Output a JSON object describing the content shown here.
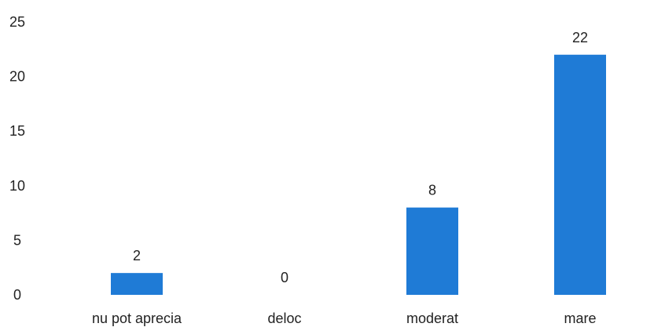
{
  "chart_data": {
    "type": "bar",
    "categories": [
      "nu pot aprecia",
      "deloc",
      "moderat",
      "mare"
    ],
    "values": [
      2,
      0,
      8,
      22
    ],
    "data_labels": [
      "2",
      "0",
      "8",
      "22"
    ],
    "y_ticks": [
      0,
      5,
      10,
      15,
      20,
      25
    ],
    "ylim": [
      0,
      25
    ],
    "grid": false,
    "legend": "none",
    "bar_color": "#1f7bd6"
  }
}
